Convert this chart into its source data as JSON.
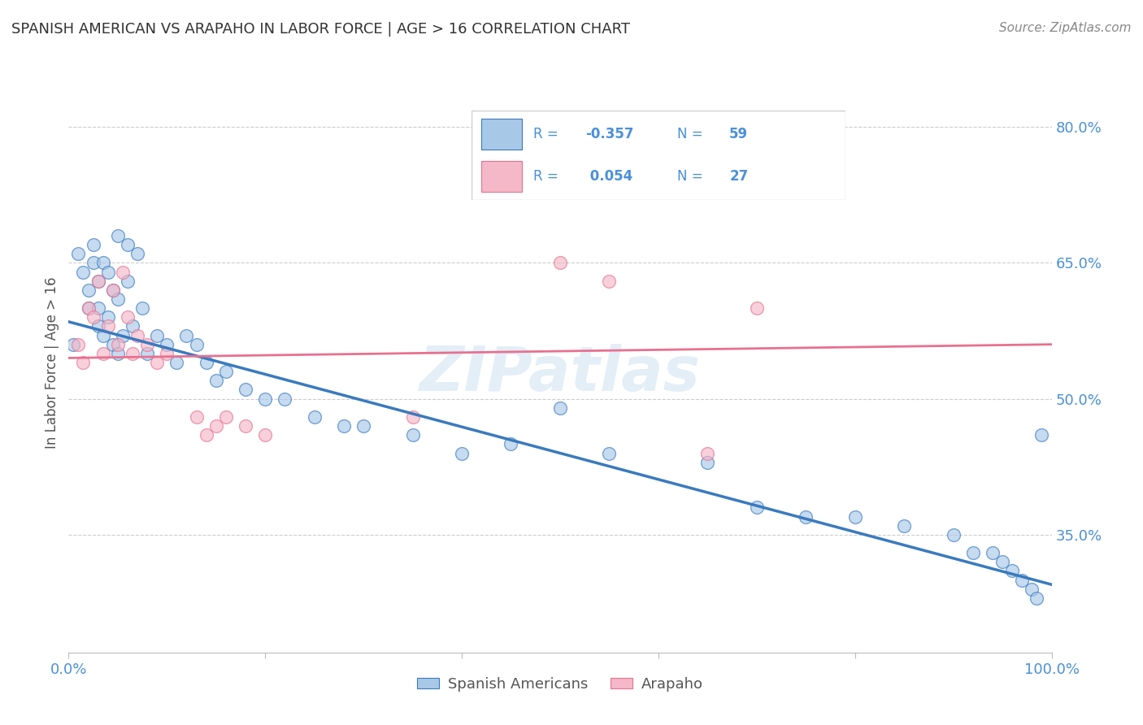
{
  "title": "SPANISH AMERICAN VS ARAPAHO IN LABOR FORCE | AGE > 16 CORRELATION CHART",
  "source_text": "Source: ZipAtlas.com",
  "xlabel": "",
  "ylabel": "In Labor Force | Age > 16",
  "legend_label1": "Spanish Americans",
  "legend_label2": "Arapaho",
  "r1": -0.357,
  "n1": 59,
  "r2": 0.054,
  "n2": 27,
  "color_blue": "#a8c8e8",
  "color_pink": "#f4b8c8",
  "color_blue_line": "#3a7abf",
  "color_pink_line": "#e87090",
  "color_legend_text": "#4a90d9",
  "xlim": [
    0.0,
    1.0
  ],
  "ylim": [
    0.22,
    0.86
  ],
  "yticks": [
    0.35,
    0.5,
    0.65,
    0.8
  ],
  "ytick_labels": [
    "35.0%",
    "50.0%",
    "65.0%",
    "80.0%"
  ],
  "xticks": [
    0.0,
    0.2,
    0.4,
    0.6,
    0.8,
    1.0
  ],
  "xtick_labels": [
    "0.0%",
    "",
    "",
    "",
    "",
    "100.0%"
  ],
  "blue_x": [
    0.005,
    0.01,
    0.015,
    0.02,
    0.02,
    0.025,
    0.025,
    0.03,
    0.03,
    0.03,
    0.035,
    0.035,
    0.04,
    0.04,
    0.045,
    0.045,
    0.05,
    0.05,
    0.05,
    0.055,
    0.06,
    0.06,
    0.065,
    0.07,
    0.075,
    0.08,
    0.09,
    0.1,
    0.11,
    0.12,
    0.13,
    0.14,
    0.15,
    0.16,
    0.18,
    0.2,
    0.22,
    0.25,
    0.28,
    0.3,
    0.35,
    0.4,
    0.45,
    0.5,
    0.55,
    0.65,
    0.7,
    0.75,
    0.8,
    0.85,
    0.9,
    0.92,
    0.94,
    0.95,
    0.96,
    0.97,
    0.98,
    0.985,
    0.99
  ],
  "blue_y": [
    0.56,
    0.66,
    0.64,
    0.62,
    0.6,
    0.67,
    0.65,
    0.63,
    0.6,
    0.58,
    0.65,
    0.57,
    0.64,
    0.59,
    0.62,
    0.56,
    0.68,
    0.61,
    0.55,
    0.57,
    0.67,
    0.63,
    0.58,
    0.66,
    0.6,
    0.55,
    0.57,
    0.56,
    0.54,
    0.57,
    0.56,
    0.54,
    0.52,
    0.53,
    0.51,
    0.5,
    0.5,
    0.48,
    0.47,
    0.47,
    0.46,
    0.44,
    0.45,
    0.49,
    0.44,
    0.43,
    0.38,
    0.37,
    0.37,
    0.36,
    0.35,
    0.33,
    0.33,
    0.32,
    0.31,
    0.3,
    0.29,
    0.28,
    0.46
  ],
  "pink_x": [
    0.01,
    0.015,
    0.02,
    0.025,
    0.03,
    0.035,
    0.04,
    0.045,
    0.05,
    0.055,
    0.06,
    0.065,
    0.07,
    0.08,
    0.09,
    0.1,
    0.13,
    0.14,
    0.15,
    0.16,
    0.18,
    0.2,
    0.35,
    0.5,
    0.55,
    0.65,
    0.7
  ],
  "pink_y": [
    0.56,
    0.54,
    0.6,
    0.59,
    0.63,
    0.55,
    0.58,
    0.62,
    0.56,
    0.64,
    0.59,
    0.55,
    0.57,
    0.56,
    0.54,
    0.55,
    0.48,
    0.46,
    0.47,
    0.48,
    0.47,
    0.46,
    0.48,
    0.65,
    0.63,
    0.44,
    0.6
  ],
  "blue_line_x0": 0.0,
  "blue_line_y0": 0.585,
  "blue_line_x1": 1.0,
  "blue_line_y1": 0.295,
  "pink_line_x0": 0.0,
  "pink_line_y0": 0.545,
  "pink_line_x1": 1.0,
  "pink_line_y1": 0.56,
  "watermark": "ZIPatlas",
  "background_color": "#ffffff",
  "grid_color": "#cccccc",
  "axis_color": "#4a90d9",
  "title_color": "#333333"
}
